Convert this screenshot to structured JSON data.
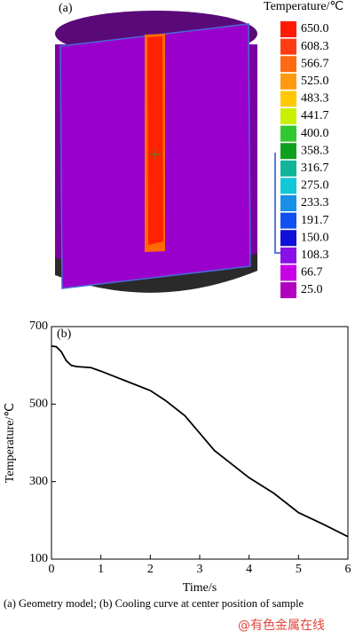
{
  "panel_a": {
    "label": "(a)",
    "legend_title": "Temperature/℃",
    "labels": [
      "650.0",
      "608.3",
      "566.7",
      "525.0",
      "483.3",
      "441.7",
      "400.0",
      "358.3",
      "316.7",
      "275.0",
      "233.3",
      "191.7",
      "150.0",
      "108.3",
      "66.7",
      "25.0"
    ],
    "colors": [
      "#ff1a00",
      "#ff3c14",
      "#ff6a10",
      "#ff9a10",
      "#ffc800",
      "#c8f000",
      "#30c830",
      "#10a020",
      "#10b49a",
      "#10c8d8",
      "#1890e8",
      "#1050f0",
      "#1010d8",
      "#8a10e8",
      "#c800e8",
      "#b000c0"
    ]
  },
  "chart_data": {
    "type": "line",
    "label": "(b)",
    "xlabel": "Time/s",
    "ylabel": "Temperature/℃",
    "x": [
      0,
      0.1,
      0.2,
      0.3,
      0.4,
      0.5,
      0.8,
      1,
      1.5,
      2,
      2.3,
      2.7,
      3,
      3.3,
      3.7,
      4,
      4.5,
      5,
      5.5,
      6
    ],
    "values": [
      650,
      648,
      635,
      612,
      600,
      597,
      594,
      585,
      560,
      535,
      510,
      470,
      425,
      380,
      340,
      310,
      270,
      220,
      190,
      158
    ],
    "color": "#000000",
    "xlim": [
      0,
      6
    ],
    "xticks": [
      0,
      1,
      2,
      3,
      4,
      5,
      6
    ],
    "ylim": [
      100,
      700
    ],
    "yticks": [
      100,
      300,
      500,
      700
    ]
  },
  "caption": "(a)  Geometry model; (b)  Cooling curve at center position of sample",
  "watermark": "@有色金属在线"
}
